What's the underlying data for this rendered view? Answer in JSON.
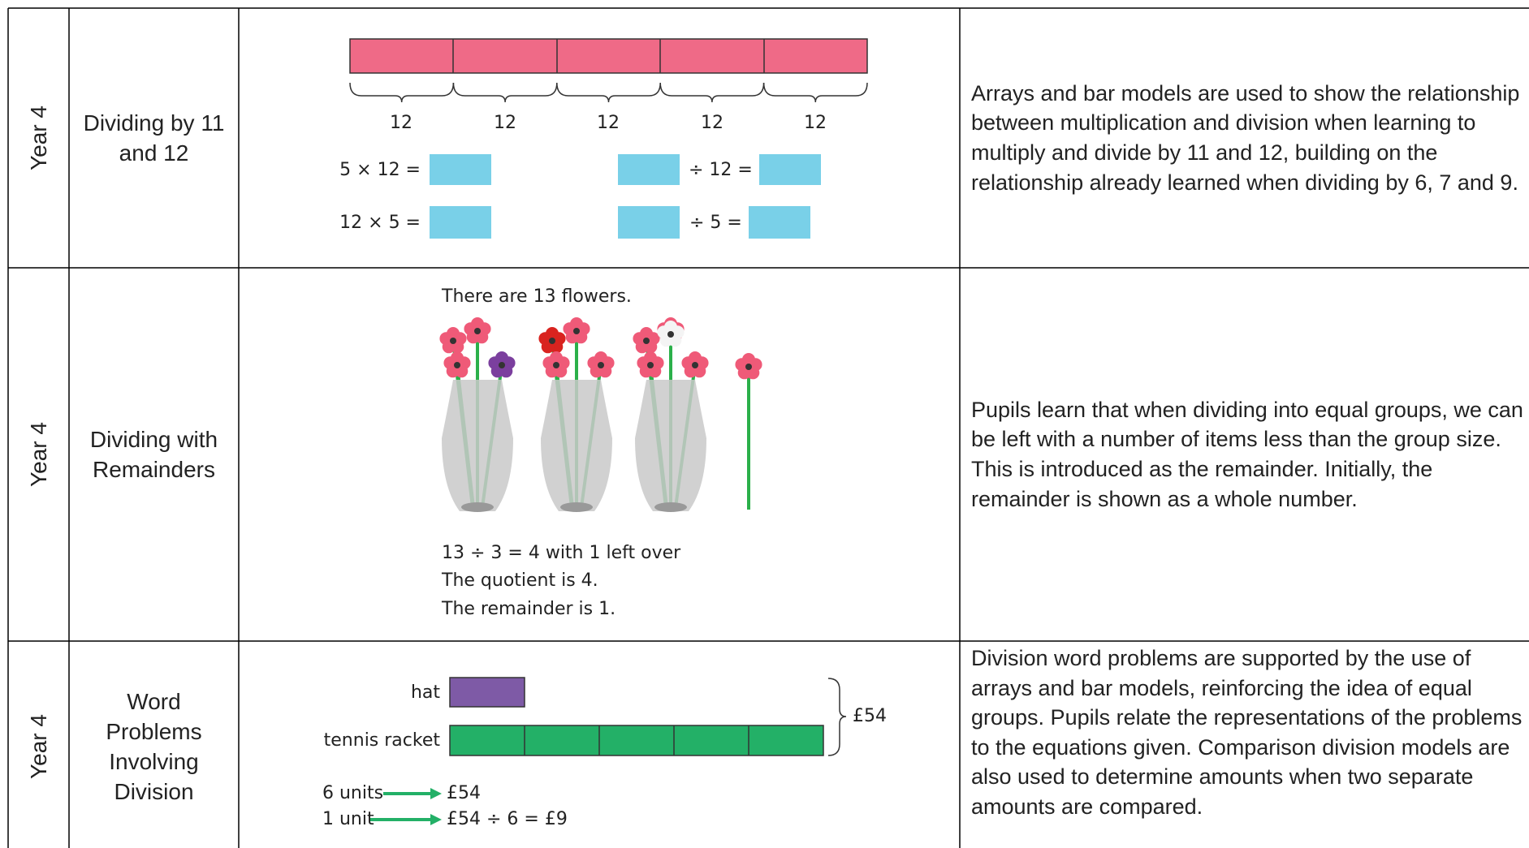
{
  "rows": [
    {
      "year": "Year 4",
      "topic": "Dividing by 11 and 12",
      "illustration": {
        "bar_labels": [
          "12",
          "12",
          "12",
          "12",
          "12"
        ],
        "equations": [
          "5 × 12 =",
          "12 × 5 =",
          "÷ 12 =",
          "÷ 5 ="
        ]
      },
      "description": "Arrays and bar models are used to show the relationship between multiplication and division when learning to multiply and divide by 11 and 12, building on the relationship already learned when dividing by 6, 7 and 9."
    },
    {
      "year": "Year 4",
      "topic": "Dividing with Remainders",
      "illustration": {
        "caption": "There are 13 flowers.",
        "lines": [
          "13 ÷ 3 = 4 with 1 left over",
          "The quotient is 4.",
          "The remainder is 1."
        ]
      },
      "description": "Pupils learn that when dividing into equal groups, we can be left with a number of items less than the group size. This is introduced as the remainder. Initially, the remainder is shown as a whole number."
    },
    {
      "year": "Year 4",
      "topic": "Word Problems Involving Division",
      "illustration": {
        "bar_labels": [
          "hat",
          "tennis racket"
        ],
        "total": "£54",
        "steps": [
          {
            "left": "6 units",
            "right": "£54"
          },
          {
            "left": "1 unit",
            "right": "£54 ÷ 6 = £9"
          }
        ]
      },
      "description": "Division word problems are supported by the use of arrays and bar models, reinforcing the idea of equal groups. Pupils relate the representations of the problems to the equations given. Comparison division models are also used to determine amounts when two separate amounts are compared."
    }
  ]
}
